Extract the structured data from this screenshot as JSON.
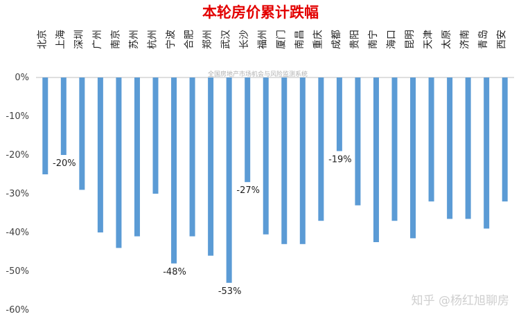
{
  "chart_data": {
    "type": "bar",
    "title": "本轮房价累计跌幅",
    "source_note": "全国房地产市场机会与风险监测系统",
    "watermark": "知乎 @杨红旭聊房",
    "ylim": [
      -60,
      0
    ],
    "yticks": [
      "0%",
      "-10%",
      "-20%",
      "-30%",
      "-40%",
      "-50%",
      "-60%"
    ],
    "grid": false,
    "categories": [
      "北京",
      "上海",
      "深圳",
      "广州",
      "南京",
      "苏州",
      "杭州",
      "宁波",
      "合肥",
      "郑州",
      "武汉",
      "长沙",
      "福州",
      "厦门",
      "南昌",
      "重庆",
      "成都",
      "贵阳",
      "南宁",
      "海口",
      "昆明",
      "天津",
      "太原",
      "济南",
      "青岛",
      "西安"
    ],
    "values": [
      -25,
      -20,
      -29,
      -40,
      -44,
      -41,
      -30,
      -48,
      -41,
      -46,
      -53,
      -27,
      -40.5,
      -43,
      -43,
      -37,
      -19,
      -33,
      -42.5,
      -37,
      -41.5,
      -32,
      -36.5,
      -36.5,
      -39,
      -32
    ],
    "data_labels": [
      {
        "index": 1,
        "text": "-20%"
      },
      {
        "index": 7,
        "text": "-48%"
      },
      {
        "index": 10,
        "text": "-53%"
      },
      {
        "index": 11,
        "text": "-27%"
      },
      {
        "index": 16,
        "text": "-19%"
      }
    ],
    "colors": {
      "bar": "#5b9bd5",
      "title": "#e30000",
      "axis": "#bfbfbf",
      "source": "#b0b0b0",
      "watermark": "#cfcfcf"
    }
  }
}
